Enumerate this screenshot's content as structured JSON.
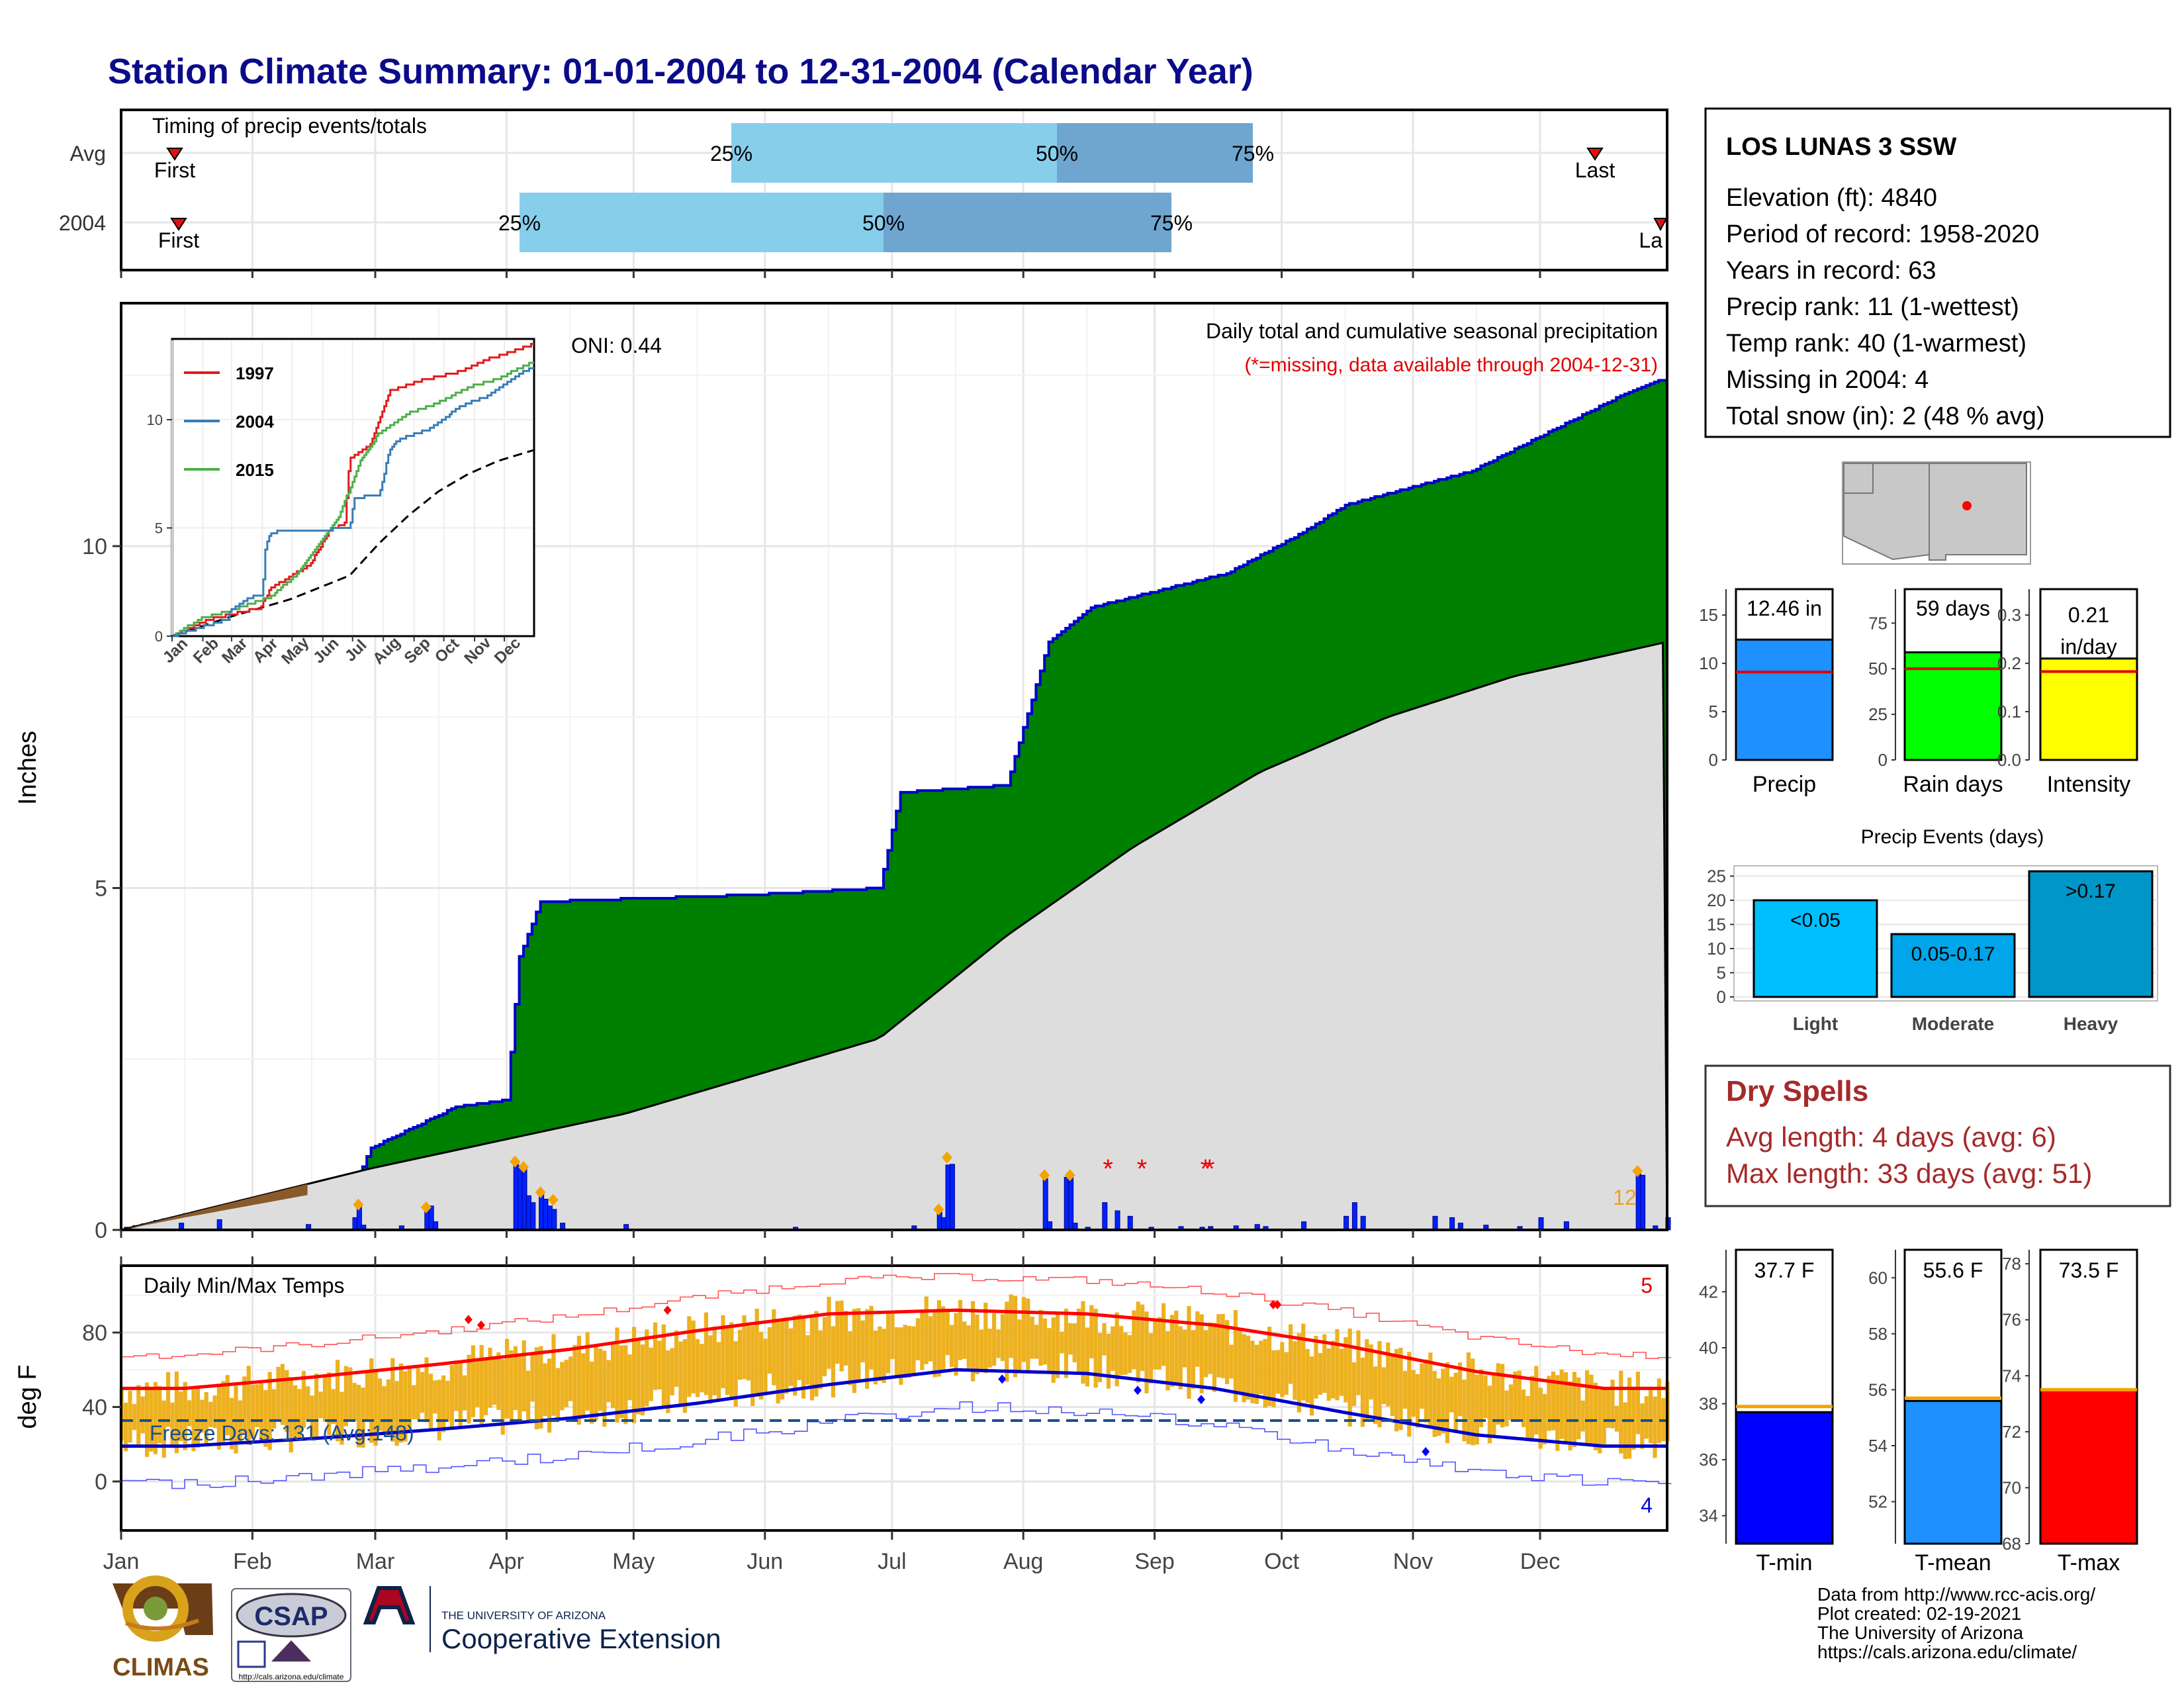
{
  "title": "Station Climate Summary: 01-01-2004 to 12-31-2004 (Calendar Year)",
  "timing": {
    "label": "Timing of precip events/totals",
    "rows": [
      "Avg",
      "2004"
    ],
    "first": "First",
    "last": "Last",
    "p25": "25%",
    "p50": "50%",
    "p75": "75%"
  },
  "precip_panel": {
    "header": "Daily total and cumulative seasonal precipitation",
    "missing_note": "(*=missing, data available through 2004-12-31)",
    "oni": "ONI: 0.44",
    "ylabel": "Inches",
    "yticks": [
      "0",
      "5",
      "10"
    ],
    "extremes_count": "12",
    "inset_legend": [
      "1997",
      "2004",
      "2015"
    ],
    "inset_yticks": [
      "0",
      "5",
      "10"
    ]
  },
  "temp_panel": {
    "label": "Daily Min/Max Temps",
    "ylabel": "deg F",
    "yticks": [
      "0",
      "40",
      "80"
    ],
    "freeze": "Freeze Days: 131 (Avg:148)",
    "max_count": "5",
    "min_count": "4"
  },
  "months": [
    "Jan",
    "Feb",
    "Mar",
    "Apr",
    "May",
    "Jun",
    "Jul",
    "Aug",
    "Sep",
    "Oct",
    "Nov",
    "Dec"
  ],
  "station": {
    "name": "LOS LUNAS 3 SSW",
    "lines": [
      "Elevation (ft): 4840",
      "Period of record: 1958-2020",
      "Years in record: 63",
      "Precip rank: 11 (1-wettest)",
      "Temp rank: 40 (1-warmest)",
      "Missing in 2004: 4",
      "Total snow (in): 2 (48 % avg)"
    ]
  },
  "precip_stats": [
    {
      "label": "Precip",
      "value_label": "12.46 in",
      "value": 12.46,
      "avg": 9.1,
      "ymax": 17,
      "yticks": [
        "0",
        "5",
        "10",
        "15"
      ],
      "color": "#1e90ff"
    },
    {
      "label": "Rain days",
      "value_label": "59 days",
      "value": 59,
      "avg": 50,
      "ymax": 90,
      "yticks": [
        "0",
        "25",
        "50",
        "75"
      ],
      "color": "#00ff00"
    },
    {
      "label": "Intensity",
      "value_label": "0.21 in/day",
      "value": 0.21,
      "avg": 0.183,
      "ymax": 0.34,
      "yticks": [
        "0.0",
        "0.1",
        "0.2",
        "0.3"
      ],
      "color": "#ffff00"
    }
  ],
  "precip_events": {
    "title": "Precip Events (days)",
    "yticks": [
      "0",
      "5",
      "10",
      "15",
      "20",
      "25"
    ],
    "bars": [
      {
        "category": "Light",
        "label": "<0.05",
        "value": 20,
        "color": "#00bfff"
      },
      {
        "category": "Moderate",
        "label": "0.05-0.17",
        "value": 13,
        "color": "#00a5ea"
      },
      {
        "category": "Heavy",
        "label": ">0.17",
        "value": 26,
        "color": "#0096c8"
      }
    ]
  },
  "dry_spells": {
    "title": "Dry Spells",
    "avg": "Avg length: 4 days (avg: 6)",
    "max": "Max length: 33 days (avg: 51)"
  },
  "temp_stats": [
    {
      "label": "T-min",
      "value_label": "37.7 F",
      "value": 37.7,
      "avg": 37.9,
      "ymin": 33,
      "ymax": 43.5,
      "ticks": [
        34,
        36,
        38,
        40,
        42
      ],
      "color": "#0000ff"
    },
    {
      "label": "T-mean",
      "value_label": "55.6 F",
      "value": 55.6,
      "avg": 55.7,
      "ymin": 50.5,
      "ymax": 61,
      "ticks": [
        52,
        54,
        56,
        58,
        60
      ],
      "color": "#1e90ff"
    },
    {
      "label": "T-max",
      "value_label": "73.5 F",
      "value": 73.5,
      "avg": 73.5,
      "ymin": 68,
      "ymax": 78.5,
      "ticks": [
        68,
        70,
        72,
        74,
        76,
        78
      ],
      "color": "#ff0000"
    }
  ],
  "credits": [
    "Data from http://www.rcc-acis.org/",
    "Plot created: 02-19-2021",
    "The University of Arizona",
    "https://cals.arizona.edu/climate/"
  ],
  "logos": {
    "climas": "CLIMAS",
    "csap": "CSAP",
    "csap_url": "http://cals.arizona.edu/climate",
    "ua_small": "THE UNIVERSITY OF ARIZONA",
    "ua_big": "Cooperative Extension"
  },
  "chart_data": {
    "type": "area",
    "title": "Daily total and cumulative seasonal precipitation",
    "ylabel": "Inches",
    "ylim": [
      0,
      13.5
    ],
    "cumulative_2004": {
      "day": [
        1,
        15,
        30,
        45,
        57,
        60,
        80,
        92,
        95,
        100,
        150,
        180,
        185,
        210,
        220,
        230,
        262,
        280,
        290,
        320,
        355,
        366
      ],
      "inches": [
        0,
        0.2,
        0.4,
        0.6,
        0.8,
        1.2,
        1.8,
        1.9,
        4.0,
        4.8,
        4.9,
        5.0,
        6.4,
        6.5,
        8.6,
        9.1,
        9.6,
        10.2,
        10.6,
        11.1,
        12.2,
        12.46
      ]
    },
    "normal_cumulative": {
      "day": [
        1,
        60,
        120,
        180,
        210,
        240,
        270,
        300,
        330,
        366
      ],
      "inches": [
        0,
        0.9,
        1.7,
        2.8,
        4.3,
        5.6,
        6.7,
        7.5,
        8.1,
        8.6
      ]
    },
    "temps": {
      "normal_max": {
        "month_mid": [
          "Jan",
          "Feb",
          "Mar",
          "Apr",
          "May",
          "Jun",
          "Jul",
          "Aug",
          "Sep",
          "Oct",
          "Nov",
          "Dec"
        ],
        "degF": [
          50,
          56,
          63,
          71,
          81,
          90,
          92,
          90,
          84,
          73,
          59,
          50
        ]
      },
      "normal_min": {
        "month_mid": [
          "Jan",
          "Feb",
          "Mar",
          "Apr",
          "May",
          "Jun",
          "Jul",
          "Aug",
          "Sep",
          "Oct",
          "Nov",
          "Dec"
        ],
        "degF": [
          19,
          23,
          28,
          34,
          42,
          52,
          60,
          58,
          50,
          37,
          25,
          19
        ]
      },
      "freeze_line": 32
    }
  }
}
